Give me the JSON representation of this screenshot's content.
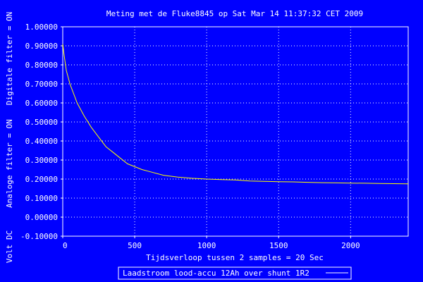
{
  "chart_data": {
    "type": "line",
    "title": "Meting met de Fluke8845 op Sat Mar 14 11:37:32 CET 2009",
    "xlabel": "Tijdsverloop tussen 2 samples = 20 Sec",
    "ylabel": "Volt DC   Analoge filter = ON   Digitale filter = ON",
    "xlim": [
      0,
      2400
    ],
    "ylim": [
      -0.1,
      1.0
    ],
    "x_ticks": [
      "0",
      "500",
      "1000",
      "1500",
      "2000"
    ],
    "y_ticks": [
      "1.00000",
      "0.90000",
      "0.80000",
      "0.70000",
      "0.60000",
      "0.50000",
      "0.40000",
      "0.30000",
      "0.20000",
      "0.10000",
      "0.00000",
      "-0.10000"
    ],
    "grid": true,
    "legend_position": "bottom-center",
    "series": [
      {
        "name": "Laadstroom lood-accu 12Ah over shunt 1R2",
        "x": [
          0,
          10,
          25,
          50,
          75,
          100,
          150,
          200,
          250,
          300,
          350,
          400,
          450,
          500,
          550,
          600,
          700,
          800,
          900,
          1000,
          1100,
          1200,
          1300,
          1400,
          1500,
          1600,
          1700,
          1800,
          1900,
          2000,
          2100,
          2200,
          2300,
          2400
        ],
        "y": [
          0.91,
          0.85,
          0.77,
          0.7,
          0.65,
          0.6,
          0.53,
          0.47,
          0.42,
          0.37,
          0.34,
          0.31,
          0.28,
          0.265,
          0.25,
          0.24,
          0.22,
          0.21,
          0.204,
          0.2,
          0.197,
          0.195,
          0.19,
          0.188,
          0.186,
          0.185,
          0.183,
          0.181,
          0.18,
          0.179,
          0.178,
          0.177,
          0.176,
          0.175
        ]
      }
    ],
    "colors": {
      "background": "#0000ff",
      "plot_border": "#ffffff",
      "grid": "#ffffff",
      "series": "#ffff00",
      "text": "#ffffff"
    }
  },
  "left_label_parts": [
    "Volt DC",
    "Analoge filter = ON",
    "Digitale filter = ON"
  ]
}
